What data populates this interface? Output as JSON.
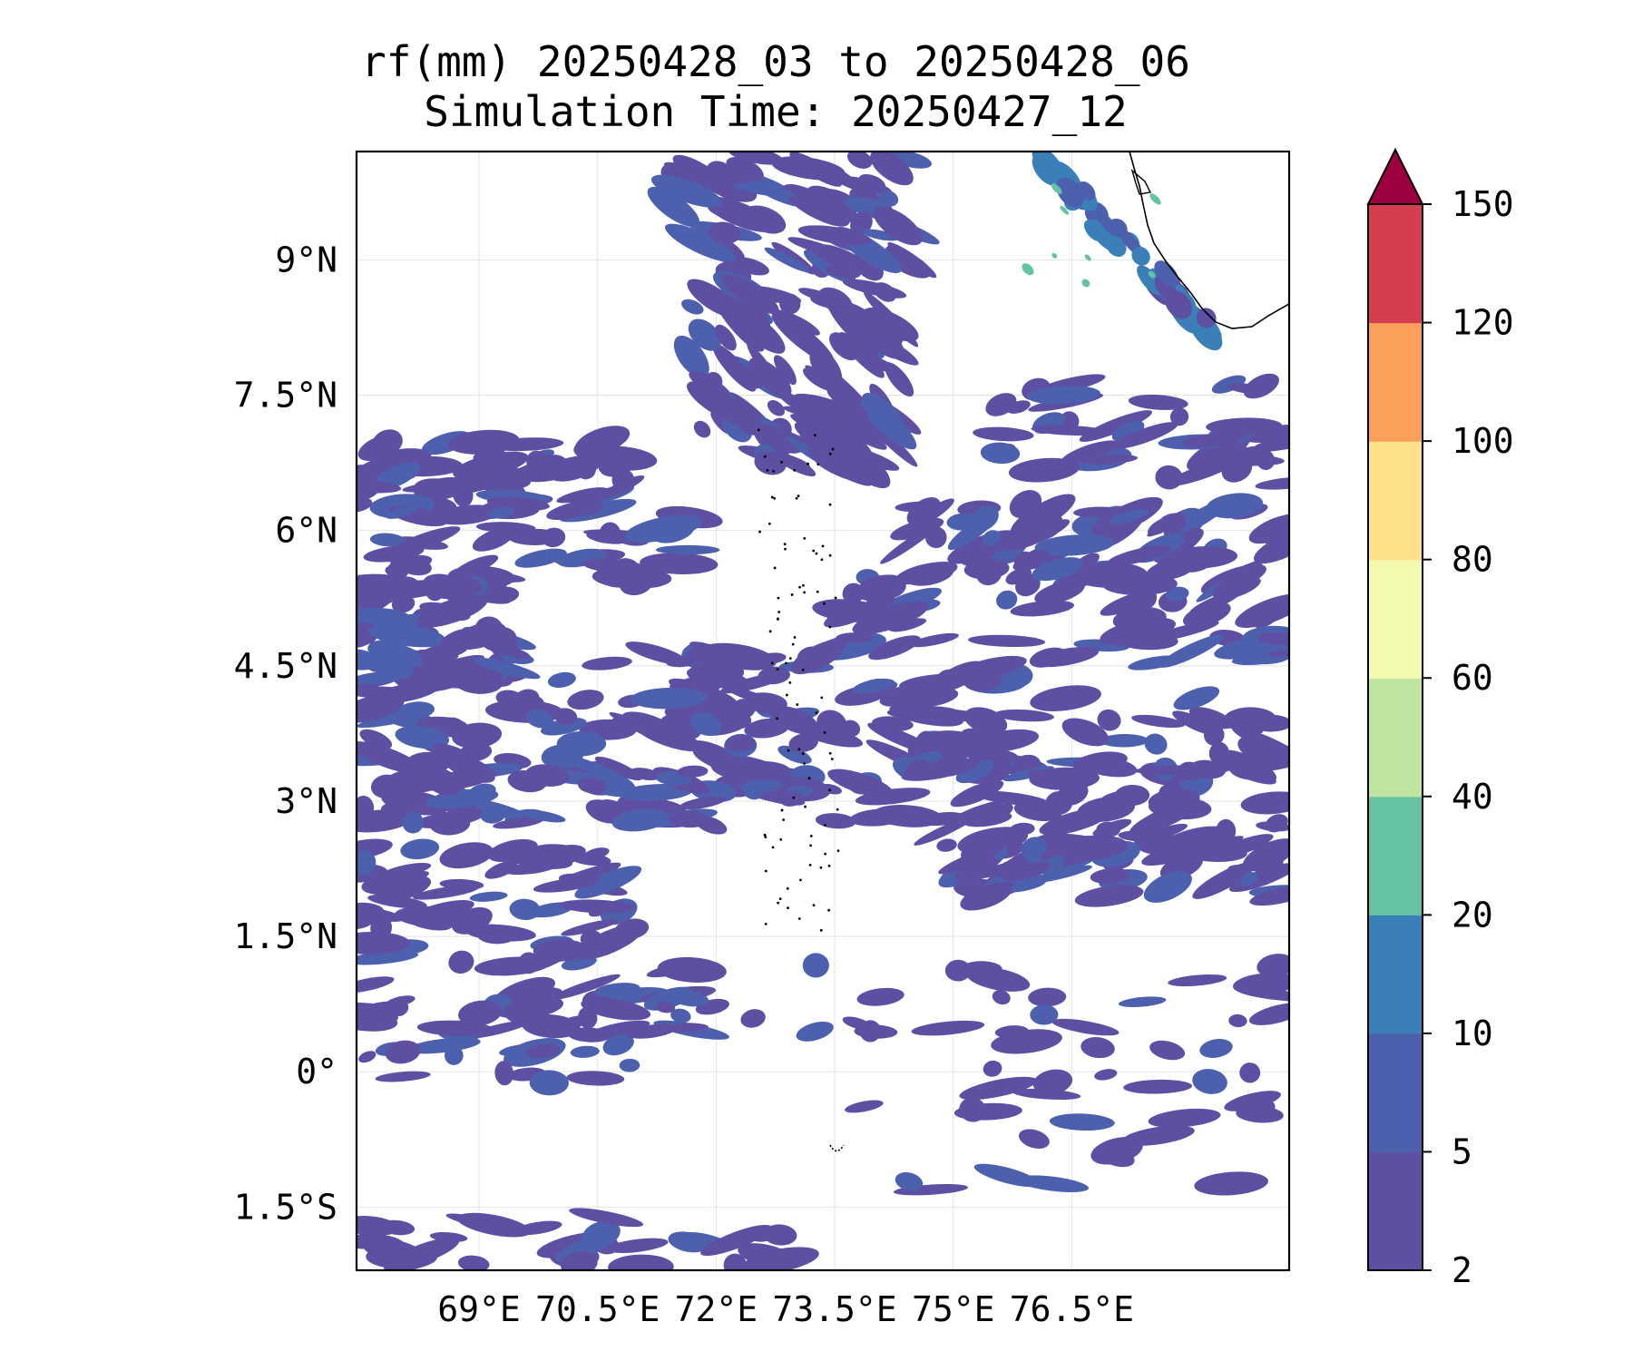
{
  "figure": {
    "title_line1": "rf(mm) 20250428_03 to 20250428_06",
    "title_line2": "Simulation Time: 20250427_12"
  },
  "map": {
    "lon_range": [
      67.45,
      79.25
    ],
    "lat_range": [
      -2.2,
      10.2
    ],
    "lon_ticks": [
      {
        "value": 69,
        "label": "69°E"
      },
      {
        "value": 70.5,
        "label": "70.5°E"
      },
      {
        "value": 72,
        "label": "72°E"
      },
      {
        "value": 73.5,
        "label": "73.5°E"
      },
      {
        "value": 75,
        "label": "75°E"
      },
      {
        "value": 76.5,
        "label": "76.5°E"
      }
    ],
    "lat_ticks": [
      {
        "value": 9,
        "label": "9°N"
      },
      {
        "value": 7.5,
        "label": "7.5°N"
      },
      {
        "value": 6,
        "label": "6°N"
      },
      {
        "value": 4.5,
        "label": "4.5°N"
      },
      {
        "value": 3,
        "label": "3°N"
      },
      {
        "value": 1.5,
        "label": "1.5°N"
      },
      {
        "value": 0,
        "label": "0°"
      },
      {
        "value": -1.5,
        "label": "1.5°S"
      }
    ],
    "gridlines": true,
    "coastline": "India (southwest coast) and Maldives atolls"
  },
  "colorbar": {
    "levels": [
      "2",
      "5",
      "10",
      "20",
      "40",
      "60",
      "80",
      "100",
      "120",
      "150"
    ],
    "colors": [
      "#5e4fa2",
      "#4d60ad",
      "#3a7fb8",
      "#66c2a5",
      "#bfe5a0",
      "#f4faad",
      "#fee08b",
      "#fba05b",
      "#d53e4f"
    ],
    "extend_color": "#9e0142",
    "extend": "max"
  }
}
